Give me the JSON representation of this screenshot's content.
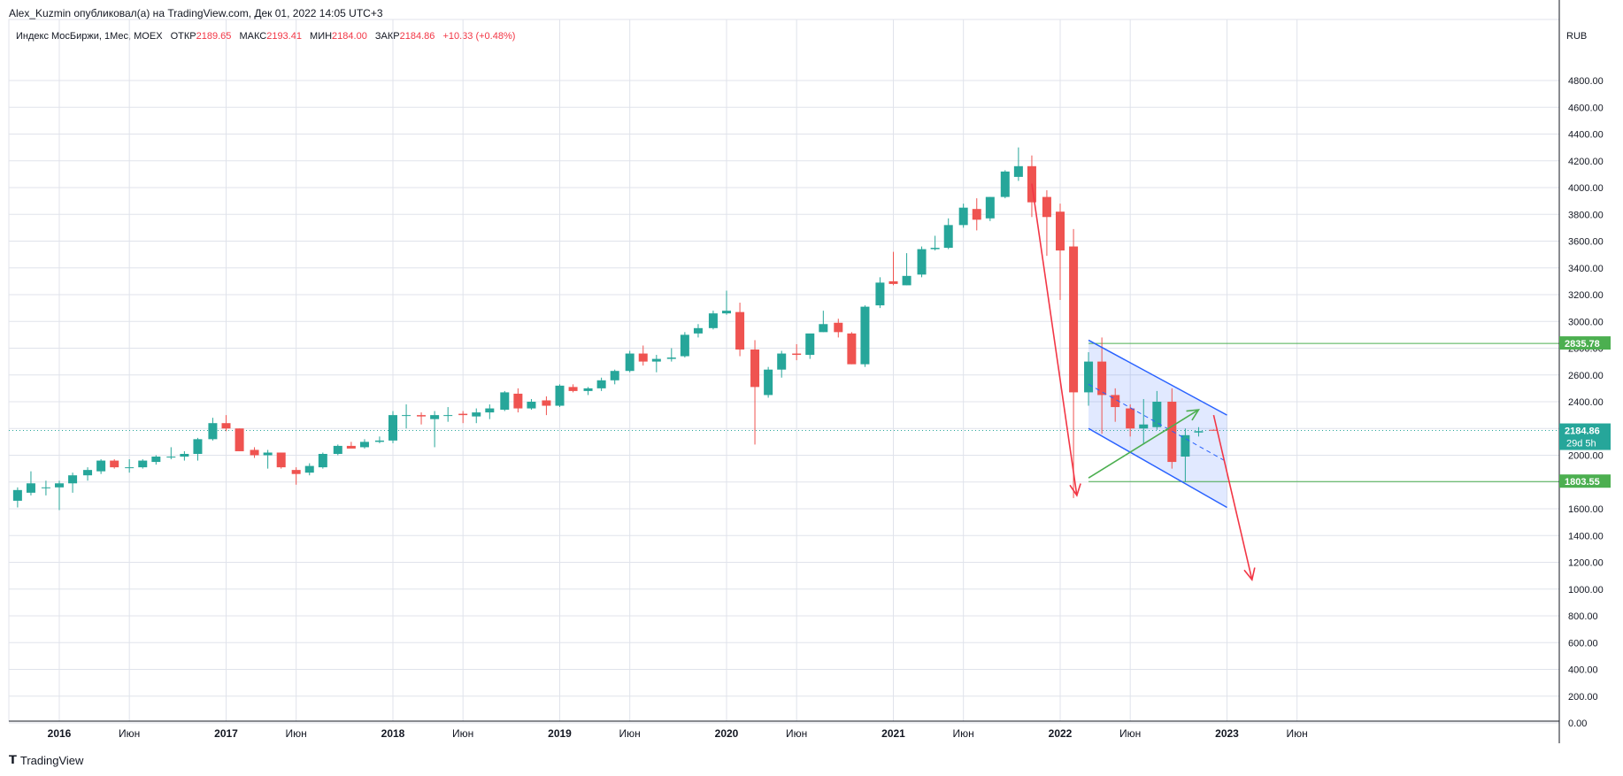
{
  "header": {
    "title": "Alex_Kuzmin опубликовал(а) на TradingView.com, Дек 01, 2022 14:05 UTC+3"
  },
  "legend": {
    "symbol": "Индекс МосБиржи, 1Мес, MOEX",
    "open_label": "ОТКР",
    "open": "2189.65",
    "high_label": "МАКС",
    "high": "2193.41",
    "low_label": "МИН",
    "low": "2184.00",
    "close_label": "ЗАКР",
    "close": "2184.86",
    "change": "+10.33 (+0.48%)"
  },
  "footer": {
    "brand": "TradingView"
  },
  "colors": {
    "up": "#26a69a",
    "down": "#ef5350",
    "channel": "#2962ff",
    "arrow": "#f23645",
    "level": "#4caf50",
    "grid": "#e0e3eb"
  },
  "chart_data": {
    "type": "candlestick",
    "currency": "RUB",
    "ylim": [
      0,
      5000
    ],
    "y_ticks": [
      "4800.00",
      "4600.00",
      "4400.00",
      "4200.00",
      "4000.00",
      "3800.00",
      "3600.00",
      "3400.00",
      "3200.00",
      "3000.00",
      "2800.00",
      "2600.00",
      "2400.00",
      "2200.00",
      "2000.00",
      "1800.00",
      "1600.00",
      "1400.00",
      "1200.00",
      "1000.00",
      "800.00",
      "600.00",
      "400.00",
      "200.00",
      "0.00"
    ],
    "x_ticks": [
      {
        "label": "2016",
        "t": 2016.0
      },
      {
        "label": "Июн",
        "t": 2016.42
      },
      {
        "label": "2017",
        "t": 2017.0
      },
      {
        "label": "Июн",
        "t": 2017.42
      },
      {
        "label": "2018",
        "t": 2018.0
      },
      {
        "label": "Июн",
        "t": 2018.42
      },
      {
        "label": "2019",
        "t": 2019.0
      },
      {
        "label": "Июн",
        "t": 2019.42
      },
      {
        "label": "2020",
        "t": 2020.0
      },
      {
        "label": "Июн",
        "t": 2020.42
      },
      {
        "label": "2021",
        "t": 2021.0
      },
      {
        "label": "Июн",
        "t": 2021.42
      },
      {
        "label": "2022",
        "t": 2022.0
      },
      {
        "label": "Июн",
        "t": 2022.42
      },
      {
        "label": "2023",
        "t": 2023.0
      },
      {
        "label": "Июн",
        "t": 2023.42
      }
    ],
    "bold_ticks": [
      "2016",
      "2017",
      "2018",
      "2019",
      "2020",
      "2021",
      "2022",
      "2023"
    ],
    "price_labels": [
      {
        "text": "2835.78",
        "value": 2835.78,
        "kind": "level"
      },
      {
        "text": "2184.86",
        "sub": "29d 5h",
        "value": 2184.86,
        "kind": "last"
      },
      {
        "text": "1803.55",
        "value": 1803.55,
        "kind": "level"
      }
    ],
    "candles": [
      {
        "t": 2015.75,
        "o": 1660,
        "h": 1760,
        "l": 1610,
        "c": 1740
      },
      {
        "t": 2015.83,
        "o": 1720,
        "h": 1880,
        "l": 1700,
        "c": 1790
      },
      {
        "t": 2015.92,
        "o": 1760,
        "h": 1810,
        "l": 1700,
        "c": 1760
      },
      {
        "t": 2016.0,
        "o": 1760,
        "h": 1810,
        "l": 1590,
        "c": 1790
      },
      {
        "t": 2016.08,
        "o": 1790,
        "h": 1870,
        "l": 1720,
        "c": 1850
      },
      {
        "t": 2016.17,
        "o": 1850,
        "h": 1910,
        "l": 1810,
        "c": 1890
      },
      {
        "t": 2016.25,
        "o": 1880,
        "h": 1970,
        "l": 1860,
        "c": 1960
      },
      {
        "t": 2016.33,
        "o": 1960,
        "h": 1970,
        "l": 1900,
        "c": 1910
      },
      {
        "t": 2016.42,
        "o": 1910,
        "h": 1970,
        "l": 1870,
        "c": 1910
      },
      {
        "t": 2016.5,
        "o": 1910,
        "h": 1970,
        "l": 1900,
        "c": 1960
      },
      {
        "t": 2016.58,
        "o": 1950,
        "h": 2000,
        "l": 1930,
        "c": 1990
      },
      {
        "t": 2016.67,
        "o": 1990,
        "h": 2060,
        "l": 1970,
        "c": 1990
      },
      {
        "t": 2016.75,
        "o": 1990,
        "h": 2030,
        "l": 1960,
        "c": 2010
      },
      {
        "t": 2016.83,
        "o": 2010,
        "h": 2130,
        "l": 1960,
        "c": 2120
      },
      {
        "t": 2016.92,
        "o": 2120,
        "h": 2280,
        "l": 2110,
        "c": 2240
      },
      {
        "t": 2017.0,
        "o": 2240,
        "h": 2300,
        "l": 2180,
        "c": 2200
      },
      {
        "t": 2017.08,
        "o": 2200,
        "h": 2200,
        "l": 2030,
        "c": 2030
      },
      {
        "t": 2017.17,
        "o": 2040,
        "h": 2060,
        "l": 1980,
        "c": 2000
      },
      {
        "t": 2017.25,
        "o": 2000,
        "h": 2040,
        "l": 1900,
        "c": 2020
      },
      {
        "t": 2017.33,
        "o": 2020,
        "h": 2020,
        "l": 1900,
        "c": 1910
      },
      {
        "t": 2017.42,
        "o": 1890,
        "h": 1910,
        "l": 1780,
        "c": 1860
      },
      {
        "t": 2017.5,
        "o": 1870,
        "h": 1940,
        "l": 1850,
        "c": 1920
      },
      {
        "t": 2017.58,
        "o": 1910,
        "h": 2020,
        "l": 1900,
        "c": 2010
      },
      {
        "t": 2017.67,
        "o": 2010,
        "h": 2080,
        "l": 2000,
        "c": 2070
      },
      {
        "t": 2017.75,
        "o": 2070,
        "h": 2100,
        "l": 2060,
        "c": 2050
      },
      {
        "t": 2017.83,
        "o": 2060,
        "h": 2120,
        "l": 2050,
        "c": 2100
      },
      {
        "t": 2017.92,
        "o": 2100,
        "h": 2140,
        "l": 2090,
        "c": 2110
      },
      {
        "t": 2018.0,
        "o": 2110,
        "h": 2330,
        "l": 2090,
        "c": 2300
      },
      {
        "t": 2018.08,
        "o": 2300,
        "h": 2380,
        "l": 2200,
        "c": 2300
      },
      {
        "t": 2018.17,
        "o": 2300,
        "h": 2320,
        "l": 2230,
        "c": 2290
      },
      {
        "t": 2018.25,
        "o": 2270,
        "h": 2330,
        "l": 2060,
        "c": 2300
      },
      {
        "t": 2018.33,
        "o": 2300,
        "h": 2360,
        "l": 2250,
        "c": 2300
      },
      {
        "t": 2018.42,
        "o": 2310,
        "h": 2330,
        "l": 2240,
        "c": 2300
      },
      {
        "t": 2018.5,
        "o": 2290,
        "h": 2350,
        "l": 2240,
        "c": 2320
      },
      {
        "t": 2018.58,
        "o": 2320,
        "h": 2380,
        "l": 2270,
        "c": 2350
      },
      {
        "t": 2018.67,
        "o": 2340,
        "h": 2480,
        "l": 2330,
        "c": 2470
      },
      {
        "t": 2018.75,
        "o": 2460,
        "h": 2500,
        "l": 2320,
        "c": 2350
      },
      {
        "t": 2018.83,
        "o": 2350,
        "h": 2420,
        "l": 2340,
        "c": 2400
      },
      {
        "t": 2018.92,
        "o": 2410,
        "h": 2440,
        "l": 2300,
        "c": 2370
      },
      {
        "t": 2019.0,
        "o": 2370,
        "h": 2530,
        "l": 2360,
        "c": 2520
      },
      {
        "t": 2019.08,
        "o": 2510,
        "h": 2530,
        "l": 2470,
        "c": 2480
      },
      {
        "t": 2019.17,
        "o": 2480,
        "h": 2510,
        "l": 2450,
        "c": 2500
      },
      {
        "t": 2019.25,
        "o": 2500,
        "h": 2580,
        "l": 2480,
        "c": 2560
      },
      {
        "t": 2019.33,
        "o": 2560,
        "h": 2640,
        "l": 2530,
        "c": 2630
      },
      {
        "t": 2019.42,
        "o": 2630,
        "h": 2780,
        "l": 2620,
        "c": 2760
      },
      {
        "t": 2019.5,
        "o": 2760,
        "h": 2820,
        "l": 2670,
        "c": 2700
      },
      {
        "t": 2019.58,
        "o": 2700,
        "h": 2750,
        "l": 2620,
        "c": 2720
      },
      {
        "t": 2019.67,
        "o": 2720,
        "h": 2800,
        "l": 2700,
        "c": 2730
      },
      {
        "t": 2019.75,
        "o": 2740,
        "h": 2920,
        "l": 2730,
        "c": 2900
      },
      {
        "t": 2019.83,
        "o": 2910,
        "h": 2980,
        "l": 2880,
        "c": 2950
      },
      {
        "t": 2019.92,
        "o": 2950,
        "h": 3080,
        "l": 2940,
        "c": 3060
      },
      {
        "t": 2020.0,
        "o": 3060,
        "h": 3230,
        "l": 3050,
        "c": 3080
      },
      {
        "t": 2020.08,
        "o": 3070,
        "h": 3140,
        "l": 2740,
        "c": 2790
      },
      {
        "t": 2020.17,
        "o": 2790,
        "h": 2860,
        "l": 2080,
        "c": 2510
      },
      {
        "t": 2020.25,
        "o": 2450,
        "h": 2660,
        "l": 2430,
        "c": 2640
      },
      {
        "t": 2020.33,
        "o": 2640,
        "h": 2780,
        "l": 2580,
        "c": 2760
      },
      {
        "t": 2020.42,
        "o": 2760,
        "h": 2830,
        "l": 2710,
        "c": 2750
      },
      {
        "t": 2020.5,
        "o": 2750,
        "h": 2900,
        "l": 2720,
        "c": 2910
      },
      {
        "t": 2020.58,
        "o": 2920,
        "h": 3080,
        "l": 2920,
        "c": 2980
      },
      {
        "t": 2020.67,
        "o": 2990,
        "h": 3020,
        "l": 2880,
        "c": 2920
      },
      {
        "t": 2020.75,
        "o": 2910,
        "h": 2920,
        "l": 2680,
        "c": 2680
      },
      {
        "t": 2020.83,
        "o": 2680,
        "h": 3120,
        "l": 2660,
        "c": 3110
      },
      {
        "t": 2020.92,
        "o": 3120,
        "h": 3330,
        "l": 3100,
        "c": 3290
      },
      {
        "t": 2021.0,
        "o": 3300,
        "h": 3520,
        "l": 3270,
        "c": 3280
      },
      {
        "t": 2021.08,
        "o": 3270,
        "h": 3510,
        "l": 3270,
        "c": 3340
      },
      {
        "t": 2021.17,
        "o": 3350,
        "h": 3560,
        "l": 3330,
        "c": 3540
      },
      {
        "t": 2021.25,
        "o": 3540,
        "h": 3640,
        "l": 3530,
        "c": 3550
      },
      {
        "t": 2021.33,
        "o": 3550,
        "h": 3770,
        "l": 3540,
        "c": 3720
      },
      {
        "t": 2021.42,
        "o": 3720,
        "h": 3880,
        "l": 3700,
        "c": 3850
      },
      {
        "t": 2021.5,
        "o": 3840,
        "h": 3920,
        "l": 3680,
        "c": 3760
      },
      {
        "t": 2021.58,
        "o": 3770,
        "h": 3930,
        "l": 3750,
        "c": 3930
      },
      {
        "t": 2021.67,
        "o": 3930,
        "h": 4130,
        "l": 3920,
        "c": 4120
      },
      {
        "t": 2021.75,
        "o": 4080,
        "h": 4300,
        "l": 4050,
        "c": 4160
      },
      {
        "t": 2021.83,
        "o": 4160,
        "h": 4240,
        "l": 3780,
        "c": 3890
      },
      {
        "t": 2021.92,
        "o": 3930,
        "h": 3980,
        "l": 3490,
        "c": 3780
      },
      {
        "t": 2022.0,
        "o": 3820,
        "h": 3880,
        "l": 3160,
        "c": 3530
      },
      {
        "t": 2022.08,
        "o": 3560,
        "h": 3690,
        "l": 1680,
        "c": 2470
      },
      {
        "t": 2022.17,
        "o": 2470,
        "h": 2770,
        "l": 2370,
        "c": 2700
      },
      {
        "t": 2022.25,
        "o": 2700,
        "h": 2880,
        "l": 2160,
        "c": 2450
      },
      {
        "t": 2022.33,
        "o": 2450,
        "h": 2500,
        "l": 2250,
        "c": 2360
      },
      {
        "t": 2022.42,
        "o": 2350,
        "h": 2380,
        "l": 2140,
        "c": 2200
      },
      {
        "t": 2022.5,
        "o": 2200,
        "h": 2420,
        "l": 2080,
        "c": 2230
      },
      {
        "t": 2022.58,
        "o": 2210,
        "h": 2480,
        "l": 2190,
        "c": 2400
      },
      {
        "t": 2022.67,
        "o": 2400,
        "h": 2500,
        "l": 1900,
        "c": 1950
      },
      {
        "t": 2022.75,
        "o": 1990,
        "h": 2200,
        "l": 1800,
        "c": 2150
      },
      {
        "t": 2022.83,
        "o": 2170,
        "h": 2210,
        "l": 2140,
        "c": 2180
      },
      {
        "t": 2022.92,
        "o": 2190,
        "h": 2193,
        "l": 2184,
        "c": 2185
      }
    ],
    "drawings": {
      "channel_upper": [
        [
          2022.17,
          2860
        ],
        [
          2023.0,
          2300
        ]
      ],
      "channel_lower": [
        [
          2022.17,
          2200
        ],
        [
          2023.0,
          1610
        ]
      ],
      "channel_mid": [
        [
          2022.17,
          2530
        ],
        [
          2023.0,
          1950
        ]
      ],
      "level_high": 2835.78,
      "level_low": 1803.55,
      "level_span": [
        2022.17,
        2023.58
      ],
      "green_arrow": [
        [
          2022.17,
          1830
        ],
        [
          2022.83,
          2340
        ]
      ],
      "red_arrow_1": [
        [
          2021.83,
          4030
        ],
        [
          2022.1,
          1700
        ]
      ],
      "red_arrow_2": [
        [
          2022.92,
          2300
        ],
        [
          2023.15,
          1070
        ]
      ]
    }
  }
}
